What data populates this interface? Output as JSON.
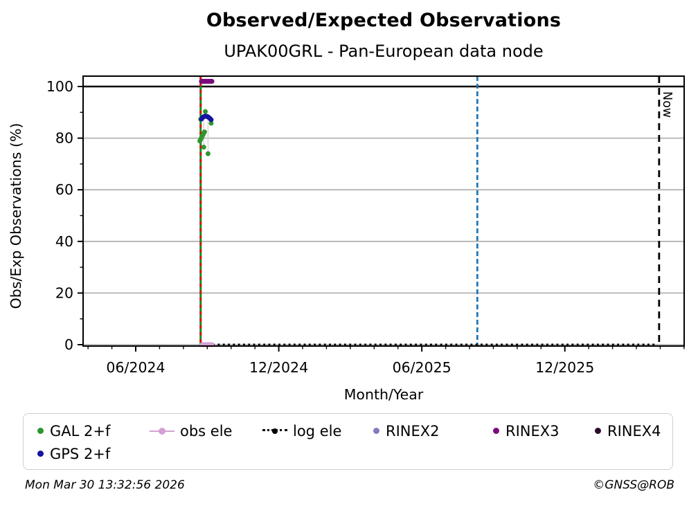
{
  "header": {
    "title": "Observed/Expected Observations",
    "subtitle": "UPAK00GRL - Pan-European data node"
  },
  "footer": {
    "timestamp": "Mon Mar 30 13:32:56 2026",
    "copyright": "©GNSS@ROB"
  },
  "chart_data": {
    "type": "scatter",
    "title": "Observed/Expected Observations",
    "subtitle": "UPAK00GRL - Pan-European data node",
    "xlabel": "Month/Year",
    "ylabel": "Obs/Exp Observations (%)",
    "ylim": [
      0,
      104
    ],
    "x_range": [
      "2024-03-26",
      "2026-05-01"
    ],
    "yticks": [
      0,
      20,
      40,
      60,
      80,
      100
    ],
    "yminor": [
      10,
      30,
      50,
      70,
      90
    ],
    "grid": true,
    "grid_color": "#b3b3b3",
    "xticks": [
      {
        "label": "06/2024",
        "date": "2024-06-01"
      },
      {
        "label": "12/2024",
        "date": "2024-12-01"
      },
      {
        "label": "06/2025",
        "date": "2025-06-01"
      },
      {
        "label": "12/2025",
        "date": "2025-12-01"
      }
    ],
    "series": [
      {
        "name": "GAL 2+f",
        "color": "#2d962d",
        "marker": "dot",
        "points": [
          [
            "2024-08-22",
            78.9
          ],
          [
            "2024-08-23",
            79.5
          ],
          [
            "2024-08-24",
            80.1
          ],
          [
            "2024-08-25",
            80.7
          ],
          [
            "2024-08-26",
            81.3
          ],
          [
            "2024-08-27",
            81.9
          ],
          [
            "2024-08-28",
            82.4
          ],
          [
            "2024-08-29",
            90.3
          ],
          [
            "2024-08-23",
            87.3
          ],
          [
            "2024-09-06",
            85.8
          ],
          [
            "2024-08-27",
            76.5
          ],
          [
            "2024-09-02",
            74.0
          ]
        ]
      },
      {
        "name": "GPS 2+f",
        "color": "#1414a0",
        "marker": "dot",
        "points": [
          [
            "2024-08-24",
            87.4
          ],
          [
            "2024-08-25",
            87.8
          ],
          [
            "2024-08-26",
            88.1
          ],
          [
            "2024-08-27",
            88.3
          ],
          [
            "2024-08-28",
            88.45
          ],
          [
            "2024-08-29",
            88.5
          ],
          [
            "2024-08-30",
            88.5
          ],
          [
            "2024-08-31",
            88.45
          ],
          [
            "2024-09-01",
            88.35
          ],
          [
            "2024-09-02",
            88.2
          ],
          [
            "2024-09-03",
            88.0
          ],
          [
            "2024-09-04",
            87.75
          ],
          [
            "2024-09-05",
            87.45
          ],
          [
            "2024-09-06",
            87.15
          ]
        ]
      },
      {
        "name": "obs ele",
        "color": "#d4a0d4",
        "marker": "line-dot",
        "points": [
          [
            "2024-08-25",
            0
          ],
          [
            "2024-08-26",
            0
          ],
          [
            "2024-08-27",
            0
          ],
          [
            "2024-08-28",
            0
          ],
          [
            "2024-08-29",
            0
          ],
          [
            "2024-08-30",
            0
          ],
          [
            "2024-08-31",
            0
          ],
          [
            "2024-09-01",
            0
          ],
          [
            "2024-09-02",
            0
          ],
          [
            "2024-09-03",
            0
          ],
          [
            "2024-09-04",
            0
          ],
          [
            "2024-09-05",
            0
          ],
          [
            "2024-09-06",
            0
          ],
          [
            "2024-09-07",
            0
          ]
        ]
      },
      {
        "name": "log ele",
        "color": "#000000",
        "marker": "dotted-line-dot",
        "from": "2024-09-08",
        "to": "2026-03-28",
        "y": 0
      },
      {
        "name": "RINEX2",
        "color": "#8778c3",
        "marker": "dot",
        "points": []
      },
      {
        "name": "RINEX3",
        "color": "#7b0c7b",
        "marker": "dot",
        "points": [
          [
            "2024-08-24",
            102
          ],
          [
            "2024-08-25",
            102
          ],
          [
            "2024-08-26",
            102
          ],
          [
            "2024-08-27",
            102
          ],
          [
            "2024-08-28",
            102
          ],
          [
            "2024-08-29",
            102
          ],
          [
            "2024-08-30",
            102
          ],
          [
            "2024-08-31",
            102
          ],
          [
            "2024-09-01",
            102
          ],
          [
            "2024-09-02",
            102
          ],
          [
            "2024-09-03",
            102
          ],
          [
            "2024-09-04",
            102
          ],
          [
            "2024-09-05",
            102
          ],
          [
            "2024-09-06",
            102
          ],
          [
            "2024-09-07",
            102
          ]
        ]
      },
      {
        "name": "RINEX4",
        "color": "#2c0a2c",
        "marker": "dot",
        "points": []
      }
    ],
    "reference_lines": {
      "green_solid": {
        "date": "2024-08-23",
        "color": "#1b861b",
        "style": "solid"
      },
      "red_dashed": {
        "date": "2024-08-23",
        "color": "#dd1111",
        "style": "dashed"
      },
      "blue_dashed": {
        "date": "2025-08-11",
        "color": "#1f77b4",
        "style": "dashed"
      },
      "now": {
        "date": "2026-03-30",
        "color": "#000000",
        "style": "dashed",
        "label": "Now"
      },
      "hline_100": {
        "y": 100,
        "color": "#000000",
        "style": "solid"
      }
    },
    "faint_connectors": [
      {
        "date": "2024-08-27",
        "y1": 88.3,
        "y2": 76.5
      },
      {
        "date": "2024-09-02",
        "y1": 88.2,
        "y2": 74.0
      }
    ],
    "legend": {
      "rows": [
        [
          "GAL 2+f",
          "obs ele",
          "log ele",
          "RINEX2",
          "RINEX3",
          "RINEX4"
        ],
        [
          "GPS 2+f"
        ]
      ],
      "position": "bottom"
    }
  }
}
